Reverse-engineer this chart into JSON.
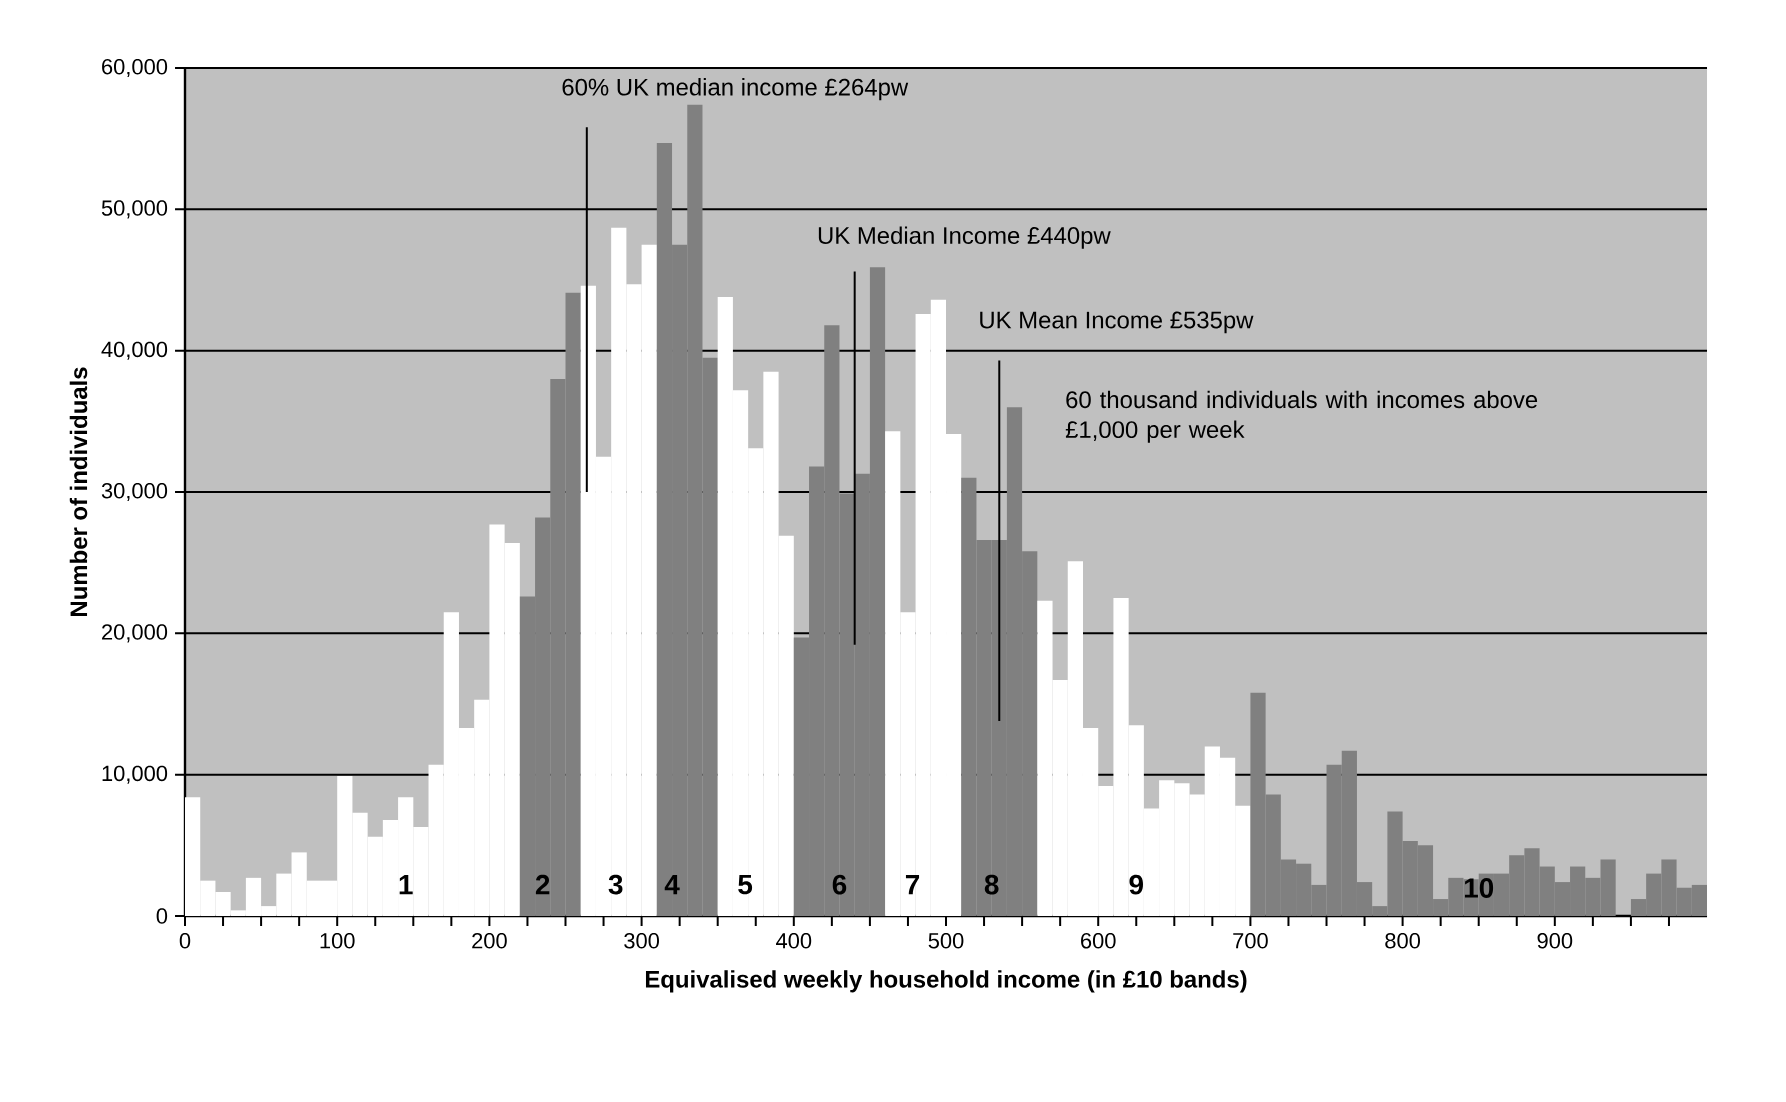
{
  "chart_data": {
    "type": "histogram",
    "xlabel": "Equivalised weekly household income (in £10 bands)",
    "ylabel": "Number of individuals",
    "bins": [
      0,
      10,
      20,
      30,
      40,
      50,
      60,
      70,
      80,
      90,
      100,
      110,
      120,
      130,
      140,
      150,
      160,
      170,
      180,
      190,
      200,
      210,
      220,
      230,
      240,
      250,
      260,
      270,
      280,
      290,
      300,
      310,
      320,
      330,
      340,
      350,
      360,
      370,
      380,
      390,
      400,
      410,
      420,
      430,
      440,
      450,
      460,
      470,
      480,
      490,
      500,
      510,
      520,
      530,
      540,
      550,
      560,
      570,
      580,
      590,
      600,
      610,
      620,
      630,
      640,
      650,
      660,
      670,
      680,
      690,
      700,
      710,
      720,
      730,
      740,
      750,
      760,
      770,
      780,
      790,
      800,
      810,
      820,
      830,
      840,
      850,
      860,
      870,
      880,
      890,
      900,
      910,
      920,
      930,
      940,
      950,
      960,
      970,
      980,
      990,
      1000
    ],
    "values": [
      8400,
      2500,
      1700,
      400,
      2700,
      700,
      3000,
      4500,
      2500,
      2500,
      9900,
      7300,
      5600,
      6800,
      8400,
      6300,
      10700,
      21500,
      13300,
      15300,
      27700,
      26400,
      22600,
      28200,
      38000,
      44100,
      44600,
      32500,
      48700,
      44700,
      47500,
      54700,
      47500,
      57400,
      39500,
      43800,
      37200,
      33100,
      38500,
      26900,
      19700,
      31800,
      41800,
      29900,
      31300,
      45900,
      34300,
      21500,
      42600,
      43600,
      34100,
      31000,
      26600,
      26600,
      36000,
      25800,
      22300,
      16700,
      25100,
      13300,
      9200,
      22500,
      13500,
      7600,
      9600,
      9400,
      8600,
      12000,
      11200,
      7800,
      15800,
      8600,
      4000,
      3700,
      2200,
      10700,
      11700,
      2400,
      700,
      7400,
      5300,
      5000,
      1200,
      2700,
      2600,
      3000,
      3000,
      4300,
      4800,
      3500,
      2400,
      3500,
      2700,
      4000,
      0,
      1200,
      3000,
      4000,
      2000,
      2200
    ],
    "colors": [
      "#ffffff",
      "#ffffff",
      "#ffffff",
      "#ffffff",
      "#ffffff",
      "#ffffff",
      "#ffffff",
      "#ffffff",
      "#ffffff",
      "#ffffff",
      "#ffffff",
      "#ffffff",
      "#ffffff",
      "#ffffff",
      "#ffffff",
      "#ffffff",
      "#ffffff",
      "#ffffff",
      "#ffffff",
      "#ffffff",
      "#ffffff",
      "#ffffff",
      "#808080",
      "#808080",
      "#808080",
      "#808080",
      "#ffffff",
      "#ffffff",
      "#ffffff",
      "#ffffff",
      "#ffffff",
      "#808080",
      "#808080",
      "#808080",
      "#808080",
      "#ffffff",
      "#ffffff",
      "#ffffff",
      "#ffffff",
      "#ffffff",
      "#808080",
      "#808080",
      "#808080",
      "#808080",
      "#808080",
      "#808080",
      "#ffffff",
      "#ffffff",
      "#ffffff",
      "#ffffff",
      "#ffffff",
      "#808080",
      "#808080",
      "#808080",
      "#808080",
      "#808080",
      "#ffffff",
      "#ffffff",
      "#ffffff",
      "#ffffff",
      "#ffffff",
      "#ffffff",
      "#ffffff",
      "#ffffff",
      "#ffffff",
      "#ffffff",
      "#ffffff",
      "#ffffff",
      "#ffffff",
      "#ffffff",
      "#808080",
      "#808080",
      "#808080",
      "#808080",
      "#808080",
      "#808080",
      "#808080",
      "#808080",
      "#808080",
      "#808080",
      "#808080",
      "#808080",
      "#808080",
      "#808080",
      "#808080",
      "#808080",
      "#808080",
      "#808080",
      "#808080",
      "#808080",
      "#808080",
      "#808080",
      "#808080",
      "#808080",
      "#808080",
      "#808080",
      "#808080",
      "#808080",
      "#808080",
      "#808080"
    ],
    "xlim": [
      0,
      1000
    ],
    "ylim": [
      0,
      60000
    ],
    "xticks": [
      0,
      {
        "value": 25,
        "label": null
      },
      {
        "value": 50,
        "label": null
      },
      {
        "value": 75,
        "label": null
      },
      100,
      {
        "value": 125,
        "label": null
      },
      {
        "value": 150,
        "label": null
      },
      {
        "value": 175,
        "label": null
      },
      200,
      {
        "value": 225,
        "label": null
      },
      {
        "value": 250,
        "label": null
      },
      {
        "value": 275,
        "label": null
      },
      300,
      {
        "value": 325,
        "label": null
      },
      {
        "value": 350,
        "label": null
      },
      {
        "value": 375,
        "label": null
      },
      400,
      {
        "value": 425,
        "label": null
      },
      {
        "value": 450,
        "label": null
      },
      {
        "value": 475,
        "label": null
      },
      500,
      {
        "value": 525,
        "label": null
      },
      {
        "value": 550,
        "label": null
      },
      {
        "value": 575,
        "label": null
      },
      600,
      {
        "value": 625,
        "label": null
      },
      {
        "value": 650,
        "label": null
      },
      {
        "value": 675,
        "label": null
      },
      700,
      {
        "value": 725,
        "label": null
      },
      {
        "value": 750,
        "label": null
      },
      {
        "value": 775,
        "label": null
      },
      800,
      {
        "value": 825,
        "label": null
      },
      {
        "value": 850,
        "label": null
      },
      {
        "value": 875,
        "label": null
      },
      900,
      {
        "value": 925,
        "label": null
      },
      {
        "value": 950,
        "label": null
      },
      {
        "value": 975,
        "label": null
      }
    ],
    "yticks": [
      0,
      {
        "value": 10000,
        "label": "10,000"
      },
      {
        "value": 20000,
        "label": "20,000"
      },
      {
        "value": 30000,
        "label": "30,000"
      },
      {
        "value": 40000,
        "label": "40,000"
      },
      {
        "value": 50000,
        "label": "50,000"
      },
      {
        "value": 60000,
        "label": "60,000"
      }
    ],
    "grid": "y",
    "ref_lines": [
      {
        "axis": "x",
        "value": 264,
        "label": "60% UK median income £264pw"
      },
      {
        "axis": "x",
        "value": 440,
        "label": "UK Median Income £440pw"
      },
      {
        "axis": "x",
        "value": 535,
        "label": "UK Mean Income £535pw"
      }
    ],
    "annotations": [
      "1",
      "2",
      "3",
      "4",
      "5",
      "6",
      "7",
      "8",
      "9",
      "10",
      "60 thousand individuals with incomes above £1,000 per week"
    ]
  }
}
